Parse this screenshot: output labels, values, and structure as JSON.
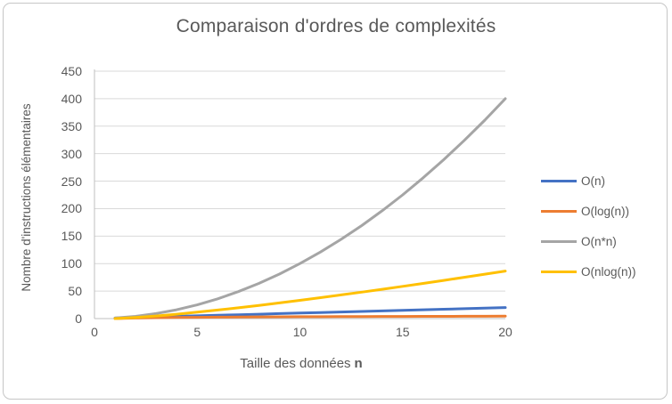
{
  "title": "Comparaison d'ordres de complexités",
  "chart_data": {
    "type": "line",
    "title": "Comparaison d'ordres de complexités",
    "xlabel": "Taille des données",
    "xlabel_bold_suffix": "n",
    "ylabel": "Nombre d'instructions élémentaires",
    "xlim": [
      0,
      20
    ],
    "ylim": [
      0,
      450
    ],
    "x_ticks": [
      0,
      5,
      10,
      15,
      20
    ],
    "y_ticks": [
      0,
      50,
      100,
      150,
      200,
      250,
      300,
      350,
      400,
      450
    ],
    "grid": "horizontal",
    "legend_position": "right",
    "x": [
      1,
      2,
      3,
      4,
      5,
      6,
      7,
      8,
      9,
      10,
      11,
      12,
      13,
      14,
      15,
      16,
      17,
      18,
      19,
      20
    ],
    "series": [
      {
        "name": "O(n)",
        "color": "#4472C4",
        "values": [
          1,
          2,
          3,
          4,
          5,
          6,
          7,
          8,
          9,
          10,
          11,
          12,
          13,
          14,
          15,
          16,
          17,
          18,
          19,
          20
        ]
      },
      {
        "name": "O(log(n))",
        "color": "#ED7D31",
        "values": [
          0,
          1,
          1.58,
          2,
          2.32,
          2.58,
          2.81,
          3,
          3.17,
          3.32,
          3.46,
          3.58,
          3.7,
          3.81,
          3.91,
          4,
          4.09,
          4.17,
          4.25,
          4.32
        ]
      },
      {
        "name": "O(n*n)",
        "color": "#A5A5A5",
        "values": [
          1,
          4,
          9,
          16,
          25,
          36,
          49,
          64,
          81,
          100,
          121,
          144,
          169,
          196,
          225,
          256,
          289,
          324,
          361,
          400
        ]
      },
      {
        "name": "O(nlog(n))",
        "color": "#FFC000",
        "values": [
          0,
          2,
          4.75,
          8,
          11.61,
          15.51,
          19.65,
          24,
          28.53,
          33.22,
          38.05,
          43.02,
          48.11,
          53.3,
          58.6,
          64,
          69.49,
          75.06,
          80.71,
          86.44
        ]
      }
    ],
    "colors": {
      "text": "#595959",
      "gridline": "#D9D9D9",
      "axis_line": "#BFBFBF"
    }
  }
}
